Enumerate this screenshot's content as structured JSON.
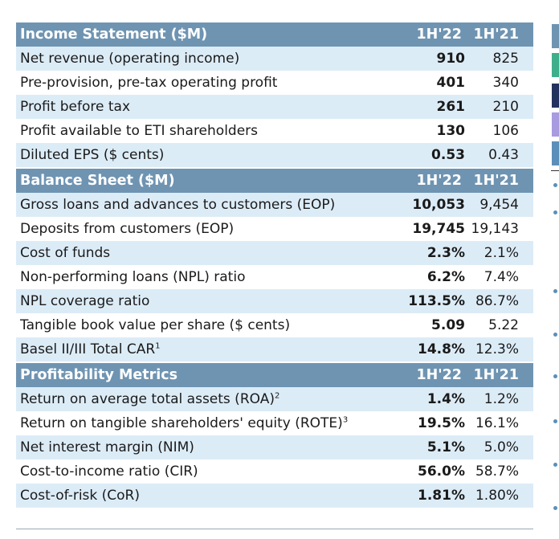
{
  "sections": [
    {
      "header": {
        "title": "Income Statement ($M)",
        "col1": "1H'22",
        "col2": "1H'21"
      },
      "rows": [
        {
          "label": "Net revenue (operating income)",
          "sup": "",
          "v1": "910",
          "v2": "825"
        },
        {
          "label": "Pre-provision, pre-tax operating profit",
          "sup": "",
          "v1": "401",
          "v2": "340"
        },
        {
          "label": "Profit before tax",
          "sup": "",
          "v1": "261",
          "v2": "210"
        },
        {
          "label": "Profit available to ETI shareholders",
          "sup": "",
          "v1": "130",
          "v2": "106"
        },
        {
          "label": "Diluted EPS ($ cents)",
          "sup": "",
          "v1": "0.53",
          "v2": "0.43"
        }
      ]
    },
    {
      "header": {
        "title": "Balance Sheet ($M)",
        "col1": "1H'22",
        "col2": "1H'21"
      },
      "rows": [
        {
          "label": "Gross loans and advances to customers (EOP)",
          "sup": "",
          "v1": "10,053",
          "v2": "9,454"
        },
        {
          "label": "Deposits from customers (EOP)",
          "sup": "",
          "v1": "19,745",
          "v2": "19,143"
        },
        {
          "label": "Cost of funds",
          "sup": "",
          "v1": "2.3%",
          "v2": "2.1%"
        },
        {
          "label": "Non-performing loans (NPL) ratio",
          "sup": "",
          "v1": "6.2%",
          "v2": "7.4%"
        },
        {
          "label": "NPL coverage ratio",
          "sup": "",
          "v1": "113.5%",
          "v2": "86.7%"
        },
        {
          "label": "Tangible book value per share ($ cents)",
          "sup": "",
          "v1": "5.09",
          "v2": "5.22"
        },
        {
          "label": "Basel II/III Total CAR",
          "sup": "1",
          "v1": "14.8%",
          "v2": "12.3%"
        }
      ]
    },
    {
      "header": {
        "title": "Profitability Metrics",
        "col1": "1H'22",
        "col2": "1H'21"
      },
      "rows": [
        {
          "label": "Return on average total assets (ROA)",
          "sup": "2",
          "v1": "1.4%",
          "v2": "1.2%"
        },
        {
          "label": "Return on tangible shareholders' equity (ROTE)",
          "sup": "3",
          "v1": "19.5%",
          "v2": "16.1%"
        },
        {
          "label": "Net interest margin (NIM)",
          "sup": "",
          "v1": "5.1%",
          "v2": "5.0%"
        },
        {
          "label": "Cost-to-income ratio (CIR)",
          "sup": "",
          "v1": "56.0%",
          "v2": "58.7%"
        },
        {
          "label": "Cost-of-risk (CoR)",
          "sup": "",
          "v1": "1.81%",
          "v2": "1.80%"
        }
      ]
    }
  ],
  "colors": {
    "header_bg": "#6f94b2",
    "row_shade": "#dcecf7",
    "strip": [
      "#6f94b2",
      "#3fae8a",
      "#23315e",
      "#a89be0",
      "#5b8fb9"
    ]
  }
}
